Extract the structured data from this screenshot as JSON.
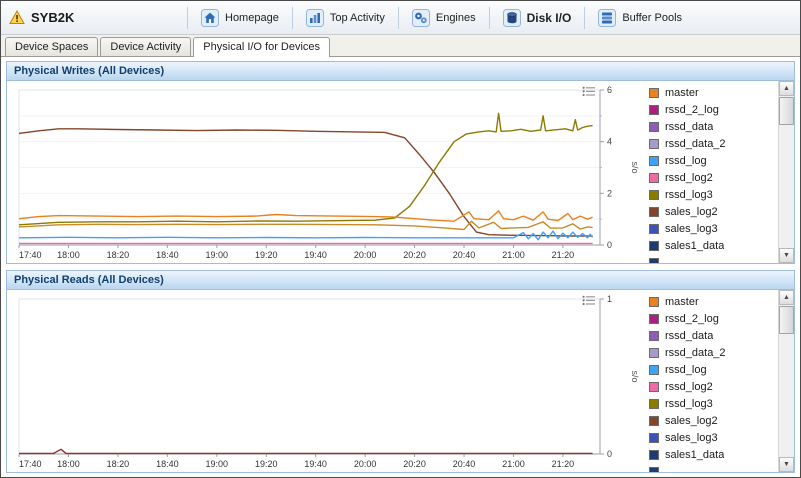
{
  "header": {
    "title": "SYB2K"
  },
  "nav": {
    "items": [
      {
        "label": "Homepage"
      },
      {
        "label": "Top Activity"
      },
      {
        "label": "Engines"
      },
      {
        "label": "Disk I/O",
        "active": true
      },
      {
        "label": "Buffer Pools"
      }
    ]
  },
  "tabs": [
    {
      "label": "Device Spaces"
    },
    {
      "label": "Device Activity"
    },
    {
      "label": "Physical I/O for Devices",
      "active": true
    }
  ],
  "icons": {
    "scroll_up": "▲",
    "scroll_down": "▼"
  },
  "legend": {
    "items": [
      {
        "label": "master",
        "color": "#e8821e"
      },
      {
        "label": "rssd_2_log",
        "color": "#a8217e"
      },
      {
        "label": "rssd_data",
        "color": "#8e5bb5"
      },
      {
        "label": "rssd_data_2",
        "color": "#a79bc8"
      },
      {
        "label": "rssd_log",
        "color": "#3fa2f7"
      },
      {
        "label": "rssd_log2",
        "color": "#f06aa8"
      },
      {
        "label": "rssd_log3",
        "color": "#8f7a00"
      },
      {
        "label": "sales_log2",
        "color": "#84452a"
      },
      {
        "label": "sales_log3",
        "color": "#3a53b4"
      },
      {
        "label": "sales1_data",
        "color": "#1f3b73"
      },
      {
        "label": "",
        "color": "#1f3b73"
      }
    ]
  },
  "chart_data": [
    {
      "type": "line",
      "title": "Physical Writes (All Devices)",
      "y_label": "s/o",
      "y_max": 6,
      "y_ticks": [
        0,
        2,
        4,
        6
      ],
      "y_minor": [
        1,
        3,
        5
      ],
      "x_ticks": [
        "17:40",
        "18:00",
        "18:20",
        "18:40",
        "19:00",
        "19:20",
        "19:40",
        "20:00",
        "20:20",
        "20:40",
        "21:00",
        "21:20"
      ],
      "x_tick_step": 20,
      "x_max_minutes": 235,
      "series": [
        {
          "name": "sales_log2",
          "color": "#84452a",
          "points": [
            [
              0,
              4.32
            ],
            [
              8,
              4.42
            ],
            [
              16,
              4.5
            ],
            [
              24,
              4.5
            ],
            [
              40,
              4.47
            ],
            [
              56,
              4.45
            ],
            [
              72,
              4.43
            ],
            [
              88,
              4.45
            ],
            [
              104,
              4.44
            ],
            [
              120,
              4.4
            ],
            [
              136,
              4.38
            ],
            [
              148,
              4.36
            ],
            [
              156,
              4.15
            ],
            [
              162,
              3.5
            ],
            [
              168,
              2.8
            ],
            [
              174,
              2.0
            ],
            [
              180,
              1.1
            ],
            [
              185,
              0.5
            ],
            [
              190,
              0.4
            ],
            [
              198,
              0.38
            ],
            [
              206,
              0.37
            ],
            [
              214,
              0.36
            ],
            [
              222,
              0.35
            ],
            [
              232,
              0.35
            ]
          ]
        },
        {
          "name": "rssd_log3",
          "color": "#8f7a00",
          "points": [
            [
              0,
              0.78
            ],
            [
              16,
              0.88
            ],
            [
              32,
              0.9
            ],
            [
              48,
              0.9
            ],
            [
              64,
              0.92
            ],
            [
              80,
              0.9
            ],
            [
              96,
              0.93
            ],
            [
              112,
              0.92
            ],
            [
              128,
              0.94
            ],
            [
              144,
              0.96
            ],
            [
              152,
              1.05
            ],
            [
              158,
              1.5
            ],
            [
              164,
              2.3
            ],
            [
              170,
              3.2
            ],
            [
              176,
              4.0
            ],
            [
              181,
              4.3
            ],
            [
              186,
              4.38
            ],
            [
              190,
              4.42
            ],
            [
              193,
              4.38
            ],
            [
              194,
              5.1
            ],
            [
              195,
              4.4
            ],
            [
              199,
              4.42
            ],
            [
              203,
              4.48
            ],
            [
              207,
              4.4
            ],
            [
              211,
              4.45
            ],
            [
              212,
              5.0
            ],
            [
              213,
              4.42
            ],
            [
              217,
              4.46
            ],
            [
              221,
              4.5
            ],
            [
              224,
              4.42
            ],
            [
              225,
              4.85
            ],
            [
              226,
              4.45
            ],
            [
              228,
              4.55
            ],
            [
              230,
              4.6
            ],
            [
              232,
              4.62
            ]
          ]
        },
        {
          "name": "master",
          "color": "#e8821e",
          "points": [
            [
              0,
              1.02
            ],
            [
              8,
              1.1
            ],
            [
              16,
              1.14
            ],
            [
              32,
              1.12
            ],
            [
              48,
              1.1
            ],
            [
              64,
              1.12
            ],
            [
              80,
              1.1
            ],
            [
              96,
              1.12
            ],
            [
              104,
              1.18
            ],
            [
              112,
              1.14
            ],
            [
              128,
              1.12
            ],
            [
              144,
              1.1
            ],
            [
              152,
              1.08
            ],
            [
              160,
              1.02
            ],
            [
              168,
              0.96
            ],
            [
              176,
              0.92
            ],
            [
              182,
              1.28
            ],
            [
              184,
              1.02
            ],
            [
              190,
              0.98
            ],
            [
              194,
              1.32
            ],
            [
              196,
              1.02
            ],
            [
              200,
              0.98
            ],
            [
              204,
              1.12
            ],
            [
              208,
              0.96
            ],
            [
              212,
              1.28
            ],
            [
              214,
              1.0
            ],
            [
              218,
              0.95
            ],
            [
              222,
              1.22
            ],
            [
              224,
              0.98
            ],
            [
              227,
              1.12
            ],
            [
              230,
              1.0
            ],
            [
              232,
              1.08
            ]
          ]
        },
        {
          "name": "unlabeled_amber",
          "color": "#c98a2a",
          "points": [
            [
              0,
              0.7
            ],
            [
              16,
              0.78
            ],
            [
              32,
              0.8
            ],
            [
              48,
              0.79
            ],
            [
              64,
              0.8
            ],
            [
              80,
              0.79
            ],
            [
              96,
              0.8
            ],
            [
              112,
              0.8
            ],
            [
              128,
              0.79
            ],
            [
              144,
              0.78
            ],
            [
              160,
              0.74
            ],
            [
              172,
              0.66
            ],
            [
              180,
              0.6
            ],
            [
              183,
              0.92
            ],
            [
              186,
              0.66
            ],
            [
              192,
              0.88
            ],
            [
              195,
              0.64
            ],
            [
              200,
              0.66
            ],
            [
              206,
              0.68
            ],
            [
              212,
              0.9
            ],
            [
              215,
              0.65
            ],
            [
              220,
              0.66
            ],
            [
              224,
              0.82
            ],
            [
              227,
              0.62
            ],
            [
              230,
              0.7
            ],
            [
              232,
              0.68
            ]
          ]
        },
        {
          "name": "rssd_log",
          "color": "#3fa2f7",
          "points": [
            [
              0,
              0.28
            ],
            [
              20,
              0.3
            ],
            [
              40,
              0.28
            ],
            [
              60,
              0.3
            ],
            [
              80,
              0.28
            ],
            [
              100,
              0.29
            ],
            [
              120,
              0.28
            ],
            [
              140,
              0.29
            ],
            [
              160,
              0.28
            ],
            [
              180,
              0.28
            ],
            [
              200,
              0.28
            ],
            [
              204,
              0.48
            ],
            [
              206,
              0.24
            ],
            [
              208,
              0.44
            ],
            [
              210,
              0.2
            ],
            [
              212,
              0.5
            ],
            [
              214,
              0.28
            ],
            [
              216,
              0.54
            ],
            [
              218,
              0.24
            ],
            [
              220,
              0.46
            ],
            [
              222,
              0.28
            ],
            [
              224,
              0.5
            ],
            [
              226,
              0.3
            ],
            [
              228,
              0.44
            ],
            [
              230,
              0.28
            ],
            [
              231,
              0.42
            ],
            [
              232,
              0.3
            ]
          ]
        },
        {
          "name": "rssd_log2",
          "color": "#f06aa8",
          "points": [
            [
              0,
              0.06
            ],
            [
              232,
              0.06
            ]
          ]
        }
      ]
    },
    {
      "type": "line",
      "title": "Physical Reads (All Devices)",
      "y_label": "s/o",
      "y_max": 1,
      "y_ticks": [
        0,
        1
      ],
      "y_minor": [],
      "x_ticks": [
        "17:40",
        "18:00",
        "18:20",
        "18:40",
        "19:00",
        "19:20",
        "19:40",
        "20:00",
        "20:20",
        "20:40",
        "21:00",
        "21:20"
      ],
      "x_tick_step": 20,
      "x_max_minutes": 235,
      "series": [
        {
          "name": "unlabeled_red",
          "color": "#9c2b2b",
          "points": [
            [
              0,
              0.004
            ],
            [
              14,
              0.004
            ],
            [
              17,
              0.03
            ],
            [
              19,
              0.004
            ],
            [
              232,
              0.004
            ]
          ]
        }
      ]
    }
  ]
}
